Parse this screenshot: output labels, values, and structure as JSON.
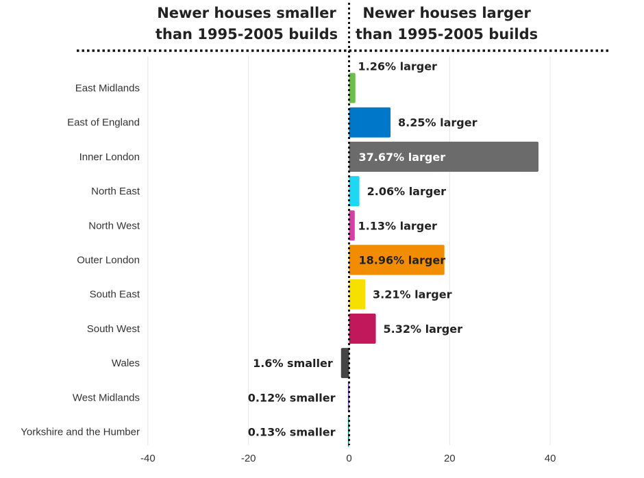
{
  "headers": {
    "left": [
      "Newer houses smaller",
      "than 1995-2005 builds"
    ],
    "right": [
      "Newer houses larger",
      "than 1995-2005 builds"
    ]
  },
  "chart_data": {
    "type": "bar",
    "orientation": "horizontal",
    "categories": [
      "East Midlands",
      "East of England",
      "Inner London",
      "North East",
      "North West",
      "Outer London",
      "South East",
      "South West",
      "Wales",
      "West Midlands",
      "Yorkshire and the Humber"
    ],
    "values": [
      1.26,
      8.25,
      37.67,
      2.06,
      1.13,
      18.96,
      3.21,
      5.32,
      -1.6,
      -0.12,
      -0.13
    ],
    "data_labels": [
      "1.26% larger",
      "8.25% larger",
      "37.67% larger",
      "2.06% larger",
      "1.13% larger",
      "18.96% larger",
      "3.21% larger",
      "5.32% larger",
      "1.6% smaller",
      "0.12% smaller",
      "0.13% smaller"
    ],
    "colors": [
      "#6abf4b",
      "#0077c8",
      "#6b6b6b",
      "#1ed7f0",
      "#d63fa5",
      "#f28c00",
      "#f5e000",
      "#c0185a",
      "#444444",
      "#7a3fb8",
      "#0d8a7a"
    ],
    "xlim": [
      -40,
      40
    ],
    "xticks": [
      -40,
      -20,
      0,
      20,
      40
    ],
    "grid": true,
    "legend": "none",
    "xlabel": "",
    "ylabel": "",
    "title": ""
  }
}
